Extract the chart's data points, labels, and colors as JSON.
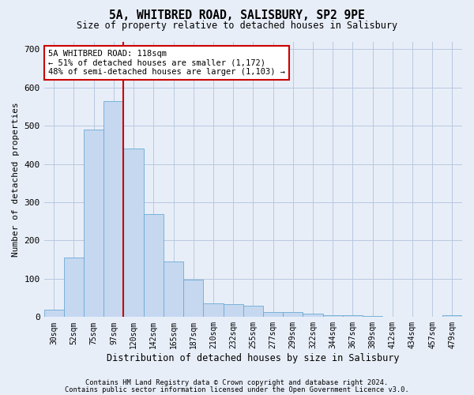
{
  "title": "5A, WHITBRED ROAD, SALISBURY, SP2 9PE",
  "subtitle": "Size of property relative to detached houses in Salisbury",
  "xlabel": "Distribution of detached houses by size in Salisbury",
  "ylabel": "Number of detached properties",
  "bar_labels": [
    "30sqm",
    "52sqm",
    "75sqm",
    "97sqm",
    "120sqm",
    "142sqm",
    "165sqm",
    "187sqm",
    "210sqm",
    "232sqm",
    "255sqm",
    "277sqm",
    "299sqm",
    "322sqm",
    "344sqm",
    "367sqm",
    "389sqm",
    "412sqm",
    "434sqm",
    "457sqm",
    "479sqm"
  ],
  "bar_values": [
    20,
    155,
    490,
    565,
    440,
    270,
    145,
    97,
    35,
    33,
    30,
    13,
    13,
    8,
    5,
    4,
    2,
    1,
    1,
    0,
    5
  ],
  "bar_color": "#c5d8f0",
  "bar_edge_color": "#6aaad4",
  "vline_color": "#cc0000",
  "annotation_text": "5A WHITBRED ROAD: 118sqm\n← 51% of detached houses are smaller (1,172)\n48% of semi-detached houses are larger (1,103) →",
  "annotation_box_color": "#ffffff",
  "annotation_box_edge_color": "#cc0000",
  "ylim": [
    0,
    720
  ],
  "yticks": [
    0,
    100,
    200,
    300,
    400,
    500,
    600,
    700
  ],
  "footer_line1": "Contains HM Land Registry data © Crown copyright and database right 2024.",
  "footer_line2": "Contains public sector information licensed under the Open Government Licence v3.0.",
  "bg_color": "#e8eef8",
  "plot_bg_color": "#e8eef8",
  "grid_color": "#b8c8e0"
}
